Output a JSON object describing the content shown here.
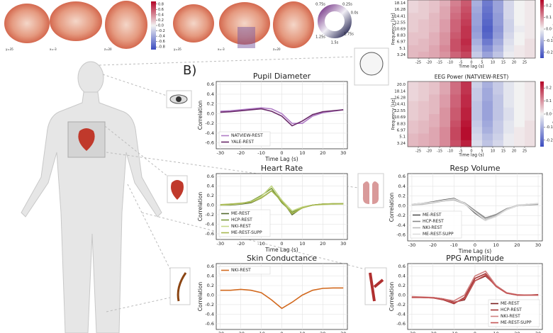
{
  "panel_label": "B)",
  "brain_slices": [
    "y=35",
    "x=-3",
    "z=20",
    "y=35",
    "x=-3",
    "z=20"
  ],
  "brain_colorbar": {
    "ticks": [
      0.8,
      0.6,
      0.4,
      0.2,
      {
        "value": 0,
        "label": "0.0"
      },
      -0.2,
      -0.4,
      -0.6,
      -0.8
    ],
    "lim": [
      -0.9,
      0.9
    ]
  },
  "phase_wheel": {
    "labels": [
      "0.75s",
      "0.25s",
      "0.0s",
      "1.25s",
      "1.75s",
      "1.5s"
    ]
  },
  "chart_data": [
    {
      "type": "line",
      "title": "Pupil Diameter",
      "xlabel": "Time Lag (s)",
      "ylabel": "Correlation",
      "x": [
        -30,
        -25,
        -20,
        -15,
        -10,
        -5,
        0,
        5,
        10,
        15,
        20,
        25,
        30
      ],
      "xlim": [
        -32,
        32
      ],
      "xticks": [
        -30,
        -20,
        -10,
        0,
        10,
        20,
        30
      ],
      "ylim": [
        -0.72,
        0.66
      ],
      "yticks": [
        -0.6,
        -0.4,
        -0.2,
        {
          "value": 0,
          "label": "0.0"
        },
        0.2,
        0.4,
        0.6
      ],
      "grid": true,
      "legend": "lower-left",
      "series": [
        {
          "name": "NATVIEW-REST",
          "color": "#b07cc6",
          "values": [
            0.05,
            0.06,
            0.08,
            0.1,
            0.12,
            0.1,
            0.0,
            -0.2,
            -0.2,
            -0.05,
            0.02,
            0.05,
            0.08
          ]
        },
        {
          "name": "YALE-REST",
          "color": "#6a2a6a",
          "values": [
            0.03,
            0.04,
            0.06,
            0.08,
            0.1,
            0.05,
            -0.05,
            -0.25,
            -0.15,
            -0.02,
            0.04,
            0.06,
            0.08
          ]
        }
      ]
    },
    {
      "type": "line",
      "title": "Heart Rate",
      "xlabel": "Time Lag (s)",
      "ylabel": "Correlation",
      "x": [
        -30,
        -25,
        -20,
        -15,
        -10,
        -5,
        0,
        5,
        10,
        15,
        20,
        25,
        30
      ],
      "xlim": [
        -32,
        32
      ],
      "xticks": [
        -30,
        -20,
        -10,
        0,
        10,
        20,
        30
      ],
      "ylim": [
        -0.72,
        0.66
      ],
      "yticks": [
        -0.6,
        -0.4,
        -0.2,
        {
          "value": 0,
          "label": "0.0"
        },
        0.2,
        0.4,
        0.6
      ],
      "grid": true,
      "legend": "lower-left",
      "series": [
        {
          "name": "ME-REST",
          "color": "#556b2f",
          "values": [
            0.0,
            0.0,
            0.02,
            0.05,
            0.15,
            0.3,
            0.1,
            -0.2,
            -0.05,
            0.0,
            0.02,
            0.02,
            0.03
          ]
        },
        {
          "name": "HCP-REST",
          "color": "#7a9a3a",
          "values": [
            0.0,
            0.02,
            0.03,
            0.08,
            0.2,
            0.35,
            0.05,
            -0.15,
            -0.05,
            0.0,
            0.02,
            0.03,
            0.03
          ]
        },
        {
          "name": "NKI-REST",
          "color": "#c5d88a",
          "values": [
            0.0,
            0.01,
            0.03,
            0.07,
            0.18,
            0.4,
            0.1,
            -0.12,
            -0.04,
            0.0,
            0.01,
            0.02,
            0.02
          ]
        },
        {
          "name": "ME-REST-SUPP",
          "color": "#a8b850",
          "values": [
            0.01,
            0.02,
            0.04,
            0.06,
            0.15,
            0.3,
            0.08,
            -0.18,
            -0.06,
            0.0,
            0.02,
            0.03,
            0.03
          ]
        }
      ]
    },
    {
      "type": "line",
      "title": "Resp Volume",
      "xlabel": "Time Lag (s)",
      "ylabel": "Correlation",
      "x": [
        -30,
        -25,
        -20,
        -15,
        -10,
        -5,
        0,
        5,
        10,
        15,
        20,
        25,
        30
      ],
      "xlim": [
        -32,
        32
      ],
      "xticks": [
        -30,
        -20,
        -10,
        0,
        10,
        20,
        30
      ],
      "ylim": [
        -0.72,
        0.66
      ],
      "yticks": [
        -0.6,
        -0.4,
        -0.2,
        {
          "value": 0,
          "label": "0.0"
        },
        0.2,
        0.4,
        0.6
      ],
      "grid": true,
      "legend": "lower-left",
      "series": [
        {
          "name": "ME-REST",
          "color": "#555555",
          "values": [
            0.03,
            0.05,
            0.08,
            0.12,
            0.15,
            0.05,
            -0.15,
            -0.3,
            -0.2,
            -0.08,
            0.0,
            0.03,
            0.04
          ]
        },
        {
          "name": "HCP-REST",
          "color": "#888888",
          "values": [
            0.02,
            0.04,
            0.07,
            0.1,
            0.13,
            0.06,
            -0.1,
            -0.25,
            -0.18,
            -0.06,
            0.0,
            0.02,
            0.03
          ]
        },
        {
          "name": "NKI-REST",
          "color": "#bbbbbb",
          "values": [
            0.02,
            0.03,
            0.06,
            0.1,
            0.12,
            0.04,
            -0.12,
            -0.28,
            -0.2,
            -0.07,
            0.01,
            0.03,
            0.04
          ]
        },
        {
          "name": "ME-REST-SUPP",
          "color": "#dddddd",
          "values": [
            0.03,
            0.05,
            0.07,
            0.11,
            0.14,
            0.05,
            -0.13,
            -0.3,
            -0.22,
            -0.08,
            0.0,
            0.03,
            0.05
          ]
        }
      ]
    },
    {
      "type": "line",
      "title": "Skin Conductance",
      "xlabel": "Time Lag (s)",
      "ylabel": "Correlation",
      "x": [
        -30,
        -25,
        -20,
        -15,
        -10,
        -5,
        0,
        5,
        10,
        15,
        20,
        25,
        30
      ],
      "xlim": [
        -32,
        32
      ],
      "xticks": [
        -30,
        -20,
        -10,
        0,
        10,
        20,
        30
      ],
      "ylim": [
        -0.72,
        0.66
      ],
      "yticks": [
        -0.6,
        -0.4,
        -0.2,
        {
          "value": 0,
          "label": "0.0"
        },
        0.2,
        0.4,
        0.6
      ],
      "grid": true,
      "legend": "upper-left",
      "series": [
        {
          "name": "NKI-REST",
          "color": "#d2691e",
          "values": [
            0.1,
            0.1,
            0.12,
            0.1,
            0.05,
            -0.1,
            -0.28,
            -0.15,
            0.0,
            0.1,
            0.14,
            0.15,
            0.15
          ]
        }
      ]
    },
    {
      "type": "line",
      "title": "PPG Amplitude",
      "xlabel": "Time Lag (s)",
      "ylabel": "Correlation",
      "x": [
        -30,
        -25,
        -20,
        -15,
        -10,
        -5,
        0,
        5,
        10,
        15,
        20,
        25,
        30
      ],
      "xlim": [
        -32,
        32
      ],
      "xticks": [
        -30,
        -20,
        -10,
        0,
        10,
        20,
        30
      ],
      "ylim": [
        -0.72,
        0.66
      ],
      "yticks": [
        -0.6,
        -0.4,
        -0.2,
        {
          "value": 0,
          "label": "0.0"
        },
        0.2,
        0.4,
        0.6
      ],
      "grid": true,
      "legend": "lower-right",
      "series": [
        {
          "name": "ME-REST",
          "color": "#7b1f1f",
          "values": [
            -0.05,
            -0.05,
            -0.05,
            -0.08,
            -0.15,
            -0.1,
            0.3,
            0.4,
            0.2,
            0.05,
            0.0,
            0.0,
            0.0
          ]
        },
        {
          "name": "HCP-REST",
          "color": "#a33333",
          "values": [
            -0.04,
            -0.05,
            -0.06,
            -0.1,
            -0.18,
            -0.05,
            0.35,
            0.45,
            0.18,
            0.04,
            0.0,
            0.0,
            0.01
          ]
        },
        {
          "name": "NKI-REST",
          "color": "#d08080",
          "values": [
            -0.03,
            -0.04,
            -0.05,
            -0.08,
            -0.12,
            0.0,
            0.4,
            0.5,
            0.2,
            0.05,
            0.01,
            0.0,
            0.0
          ]
        },
        {
          "name": "ME-REST-SUPP",
          "color": "#c55555",
          "values": [
            -0.05,
            -0.05,
            -0.06,
            -0.09,
            -0.16,
            -0.08,
            0.3,
            0.42,
            0.18,
            0.04,
            0.0,
            0.0,
            0.0
          ]
        }
      ]
    },
    {
      "type": "heatmap",
      "xlabel": "Time lag (s)",
      "ylabel": "Frequency [Hz]",
      "zlabel": "Correlation",
      "x": [
        -27.5,
        -22.5,
        -17.5,
        -12.5,
        -7.5,
        -2.5,
        2.5,
        7.5,
        12.5,
        17.5,
        22.5,
        27.5
      ],
      "xlim": [
        -30,
        30
      ],
      "xticks": [
        -25,
        -20,
        -15,
        -10,
        -5,
        0,
        5,
        10,
        15,
        20,
        25
      ],
      "categories": [
        "18.14",
        "16.28",
        "14.41",
        "12.55",
        "10.69",
        "8.83",
        "6.97",
        "5.1",
        "3.24"
      ],
      "zlim": [
        -0.25,
        0.25
      ],
      "zticks": [
        -0.2,
        -0.1,
        {
          "value": 0,
          "label": "0.0"
        },
        0.1,
        0.2
      ],
      "z": [
        [
          0.03,
          0.04,
          0.05,
          0.07,
          0.12,
          0.16,
          -0.1,
          -0.18,
          -0.12,
          -0.04,
          0.0,
          0.01
        ],
        [
          0.03,
          0.04,
          0.05,
          0.08,
          0.13,
          0.17,
          -0.11,
          -0.19,
          -0.12,
          -0.04,
          0.0,
          0.01
        ],
        [
          0.04,
          0.04,
          0.06,
          0.08,
          0.14,
          0.18,
          -0.12,
          -0.2,
          -0.13,
          -0.04,
          0.0,
          0.01
        ],
        [
          0.04,
          0.05,
          0.06,
          0.09,
          0.15,
          0.19,
          -0.12,
          -0.21,
          -0.13,
          -0.05,
          0.0,
          0.01
        ],
        [
          0.04,
          0.05,
          0.06,
          0.09,
          0.15,
          0.2,
          -0.13,
          -0.22,
          -0.14,
          -0.05,
          -0.01,
          0.01
        ],
        [
          0.05,
          0.05,
          0.07,
          0.1,
          0.16,
          0.2,
          -0.12,
          -0.21,
          -0.13,
          -0.04,
          0.0,
          0.01
        ],
        [
          0.05,
          0.06,
          0.07,
          0.1,
          0.17,
          0.21,
          -0.1,
          -0.18,
          -0.11,
          -0.03,
          0.0,
          0.02
        ],
        [
          0.06,
          0.06,
          0.08,
          0.11,
          0.17,
          0.2,
          -0.08,
          -0.15,
          -0.09,
          -0.02,
          0.01,
          0.02
        ],
        [
          0.06,
          0.07,
          0.08,
          0.1,
          0.15,
          0.18,
          -0.06,
          -0.12,
          -0.07,
          -0.01,
          0.01,
          0.02
        ]
      ]
    },
    {
      "type": "heatmap",
      "title": "EEG Power (NATVIEW-REST)",
      "xlabel": "Time lag (s)",
      "ylabel": "Frequency [Hz]",
      "zlabel": "Correlation",
      "x": [
        -27.5,
        -22.5,
        -17.5,
        -12.5,
        -7.5,
        -2.5,
        2.5,
        7.5,
        12.5,
        17.5,
        22.5,
        27.5
      ],
      "xlim": [
        -30,
        30
      ],
      "xticks": [
        -25,
        -20,
        -15,
        -10,
        -5,
        0,
        5,
        10,
        15,
        20,
        25
      ],
      "categories": [
        "20.0",
        "18.14",
        "16.28",
        "14.41",
        "12.55",
        "10.69",
        "8.83",
        "6.97",
        "5.1",
        "3.24"
      ],
      "zlim": [
        -0.25,
        0.25
      ],
      "zticks": [
        -0.2,
        -0.1,
        {
          "value": 0,
          "label": "0.0"
        },
        0.1,
        0.2
      ],
      "z": [
        [
          0.03,
          0.04,
          0.05,
          0.08,
          0.14,
          0.2,
          -0.05,
          -0.1,
          -0.06,
          -0.02,
          0.0,
          0.01
        ],
        [
          0.03,
          0.04,
          0.05,
          0.08,
          0.14,
          0.2,
          -0.06,
          -0.11,
          -0.06,
          -0.02,
          0.0,
          0.01
        ],
        [
          0.03,
          0.04,
          0.06,
          0.09,
          0.15,
          0.21,
          -0.06,
          -0.11,
          -0.07,
          -0.02,
          0.0,
          0.01
        ],
        [
          0.04,
          0.05,
          0.06,
          0.09,
          0.15,
          0.21,
          -0.07,
          -0.12,
          -0.07,
          -0.02,
          0.0,
          0.01
        ],
        [
          0.04,
          0.05,
          0.06,
          0.1,
          0.16,
          0.22,
          -0.07,
          -0.12,
          -0.07,
          -0.03,
          0.0,
          0.01
        ],
        [
          0.04,
          0.05,
          0.07,
          0.1,
          0.16,
          0.22,
          -0.07,
          -0.12,
          -0.07,
          -0.03,
          0.0,
          0.01
        ],
        [
          0.05,
          0.06,
          0.07,
          0.1,
          0.17,
          0.23,
          -0.06,
          -0.11,
          -0.06,
          -0.02,
          0.0,
          0.02
        ],
        [
          0.05,
          0.06,
          0.08,
          0.11,
          0.18,
          0.24,
          -0.05,
          -0.1,
          -0.06,
          -0.02,
          0.01,
          0.02
        ],
        [
          0.06,
          0.07,
          0.08,
          0.11,
          0.18,
          0.24,
          -0.04,
          -0.08,
          -0.05,
          -0.01,
          0.01,
          0.02
        ],
        [
          0.06,
          0.07,
          0.08,
          0.11,
          0.17,
          0.22,
          -0.03,
          -0.07,
          -0.04,
          -0.01,
          0.01,
          0.02
        ]
      ]
    }
  ]
}
